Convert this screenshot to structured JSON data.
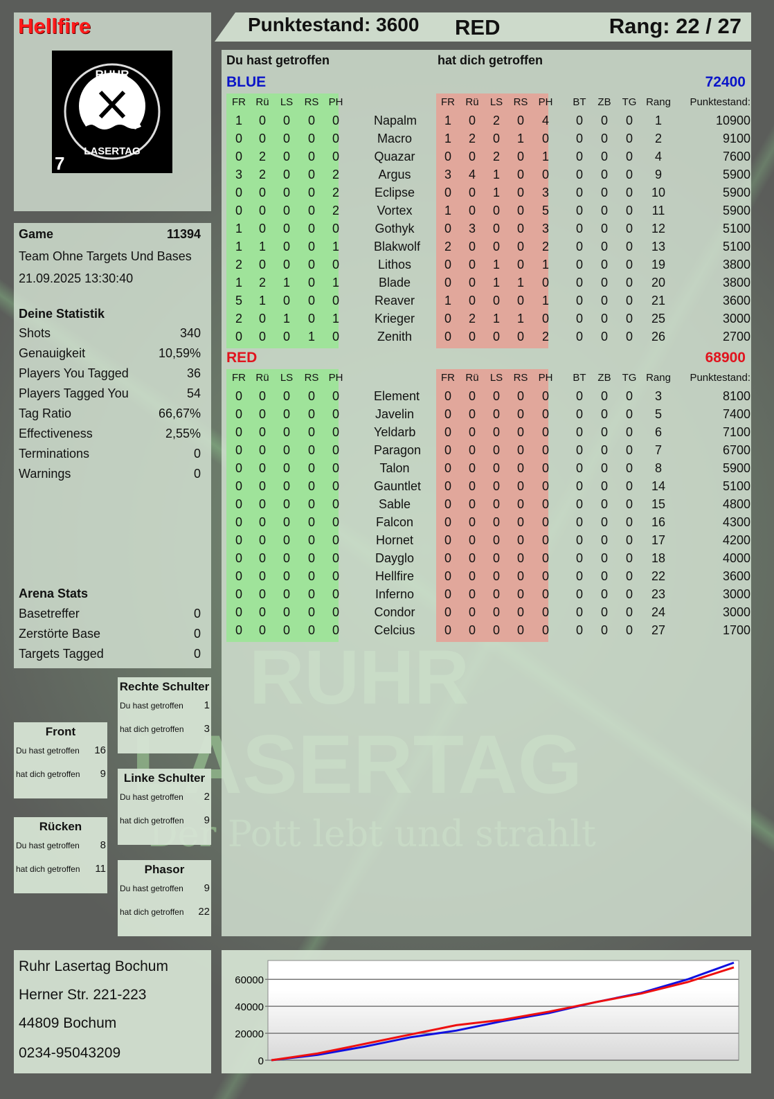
{
  "player": {
    "name": "Hellfire",
    "name_color": "#ff1a1a"
  },
  "logo": {
    "text_top": "RUHR",
    "text_bottom": "LASERTAG",
    "badge": "7"
  },
  "header": {
    "score": "Punktestand: 3600",
    "team": "RED",
    "rank": "Rang: 22 / 27"
  },
  "watermark": {
    "line1": "RUHR",
    "line2": "LASERTAG",
    "line3": "Der Pott lebt und strahlt"
  },
  "game": {
    "label": "Game",
    "id": "11394",
    "mode": "Team Ohne Targets Und Bases",
    "datetime": "21.09.2025 13:30:40"
  },
  "stats": {
    "title": "Deine Statistik",
    "items": [
      {
        "label": "Shots",
        "value": "340"
      },
      {
        "label": "Genauigkeit",
        "value": "10,59%"
      },
      {
        "label": "Players You Tagged",
        "value": "36"
      },
      {
        "label": "Players Tagged You",
        "value": "54"
      },
      {
        "label": "Tag Ratio",
        "value": "66,67%"
      },
      {
        "label": "Effectiveness",
        "value": "2,55%"
      },
      {
        "label": "Terminations",
        "value": "0"
      },
      {
        "label": "Warnings",
        "value": "0"
      }
    ]
  },
  "arena": {
    "title": "Arena Stats",
    "items": [
      {
        "label": "Basetreffer",
        "value": "0"
      },
      {
        "label": "Zerstörte Base",
        "value": "0"
      },
      {
        "label": "Targets Tagged",
        "value": "0"
      }
    ]
  },
  "zones": [
    {
      "id": "rechte-schulter",
      "title": "Rechte Schulter",
      "hit_label": "Du hast getroffen",
      "hit": "1",
      "got_label": "hat dich getroffen",
      "got": "3"
    },
    {
      "id": "front",
      "title": "Front",
      "hit_label": "Du hast getroffen",
      "hit": "16",
      "got_label": "hat dich getroffen",
      "got": "9"
    },
    {
      "id": "linke-schulter",
      "title": "Linke Schulter",
      "hit_label": "Du hast getroffen",
      "hit": "2",
      "got_label": "hat dich getroffen",
      "got": "9"
    },
    {
      "id": "ruecken",
      "title": "Rücken",
      "hit_label": "Du hast getroffen",
      "hit": "8",
      "got_label": "hat dich getroffen",
      "got": "11"
    },
    {
      "id": "phasor",
      "title": "Phasor",
      "hit_label": "Du hast getroffen",
      "hit": "9",
      "got_label": "hat dich getroffen",
      "got": "22"
    }
  ],
  "address": {
    "lines": [
      "Ruhr Lasertag Bochum",
      "Herner Str. 221-223",
      "44809 Bochum",
      "0234-95043209"
    ]
  },
  "table": {
    "you_hit": "Du hast getroffen",
    "hit_you": "hat dich getroffen",
    "columns": [
      "FR",
      "Rü",
      "LS",
      "RS",
      "PH"
    ],
    "extra_columns": [
      "BT",
      "ZB",
      "TG",
      "Rang",
      "Punktestand:"
    ],
    "teams": [
      {
        "name": "BLUE",
        "score": "72400",
        "color": "#0a14c8",
        "players": [
          [
            "1",
            "0",
            "0",
            "0",
            "0",
            "Napalm",
            "1",
            "0",
            "2",
            "0",
            "4",
            "0",
            "0",
            "0",
            "1",
            "10900"
          ],
          [
            "0",
            "0",
            "0",
            "0",
            "0",
            "Macro",
            "1",
            "2",
            "0",
            "1",
            "0",
            "0",
            "0",
            "0",
            "2",
            "9100"
          ],
          [
            "0",
            "2",
            "0",
            "0",
            "0",
            "Quazar",
            "0",
            "0",
            "2",
            "0",
            "1",
            "0",
            "0",
            "0",
            "4",
            "7600"
          ],
          [
            "3",
            "2",
            "0",
            "0",
            "2",
            "Argus",
            "3",
            "4",
            "1",
            "0",
            "0",
            "0",
            "0",
            "0",
            "9",
            "5900"
          ],
          [
            "0",
            "0",
            "0",
            "0",
            "2",
            "Eclipse",
            "0",
            "0",
            "1",
            "0",
            "3",
            "0",
            "0",
            "0",
            "10",
            "5900"
          ],
          [
            "0",
            "0",
            "0",
            "0",
            "2",
            "Vortex",
            "1",
            "0",
            "0",
            "0",
            "5",
            "0",
            "0",
            "0",
            "11",
            "5900"
          ],
          [
            "1",
            "0",
            "0",
            "0",
            "0",
            "Gothyk",
            "0",
            "3",
            "0",
            "0",
            "3",
            "0",
            "0",
            "0",
            "12",
            "5100"
          ],
          [
            "1",
            "1",
            "0",
            "0",
            "1",
            "Blakwolf",
            "2",
            "0",
            "0",
            "0",
            "2",
            "0",
            "0",
            "0",
            "13",
            "5100"
          ],
          [
            "2",
            "0",
            "0",
            "0",
            "0",
            "Lithos",
            "0",
            "0",
            "1",
            "0",
            "1",
            "0",
            "0",
            "0",
            "19",
            "3800"
          ],
          [
            "1",
            "2",
            "1",
            "0",
            "1",
            "Blade",
            "0",
            "0",
            "1",
            "1",
            "0",
            "0",
            "0",
            "0",
            "20",
            "3800"
          ],
          [
            "5",
            "1",
            "0",
            "0",
            "0",
            "Reaver",
            "1",
            "0",
            "0",
            "0",
            "1",
            "0",
            "0",
            "0",
            "21",
            "3600"
          ],
          [
            "2",
            "0",
            "1",
            "0",
            "1",
            "Krieger",
            "0",
            "2",
            "1",
            "1",
            "0",
            "0",
            "0",
            "0",
            "25",
            "3000"
          ],
          [
            "0",
            "0",
            "0",
            "1",
            "0",
            "Zenith",
            "0",
            "0",
            "0",
            "0",
            "2",
            "0",
            "0",
            "0",
            "26",
            "2700"
          ]
        ]
      },
      {
        "name": "RED",
        "score": "68900",
        "color": "#e0141e",
        "players": [
          [
            "0",
            "0",
            "0",
            "0",
            "0",
            "Element",
            "0",
            "0",
            "0",
            "0",
            "0",
            "0",
            "0",
            "0",
            "3",
            "8100"
          ],
          [
            "0",
            "0",
            "0",
            "0",
            "0",
            "Javelin",
            "0",
            "0",
            "0",
            "0",
            "0",
            "0",
            "0",
            "0",
            "5",
            "7400"
          ],
          [
            "0",
            "0",
            "0",
            "0",
            "0",
            "Yeldarb",
            "0",
            "0",
            "0",
            "0",
            "0",
            "0",
            "0",
            "0",
            "6",
            "7100"
          ],
          [
            "0",
            "0",
            "0",
            "0",
            "0",
            "Paragon",
            "0",
            "0",
            "0",
            "0",
            "0",
            "0",
            "0",
            "0",
            "7",
            "6700"
          ],
          [
            "0",
            "0",
            "0",
            "0",
            "0",
            "Talon",
            "0",
            "0",
            "0",
            "0",
            "0",
            "0",
            "0",
            "0",
            "8",
            "5900"
          ],
          [
            "0",
            "0",
            "0",
            "0",
            "0",
            "Gauntlet",
            "0",
            "0",
            "0",
            "0",
            "0",
            "0",
            "0",
            "0",
            "14",
            "5100"
          ],
          [
            "0",
            "0",
            "0",
            "0",
            "0",
            "Sable",
            "0",
            "0",
            "0",
            "0",
            "0",
            "0",
            "0",
            "0",
            "15",
            "4800"
          ],
          [
            "0",
            "0",
            "0",
            "0",
            "0",
            "Falcon",
            "0",
            "0",
            "0",
            "0",
            "0",
            "0",
            "0",
            "0",
            "16",
            "4300"
          ],
          [
            "0",
            "0",
            "0",
            "0",
            "0",
            "Hornet",
            "0",
            "0",
            "0",
            "0",
            "0",
            "0",
            "0",
            "0",
            "17",
            "4200"
          ],
          [
            "0",
            "0",
            "0",
            "0",
            "0",
            "Dayglo",
            "0",
            "0",
            "0",
            "0",
            "0",
            "0",
            "0",
            "0",
            "18",
            "4000"
          ],
          [
            "0",
            "0",
            "0",
            "0",
            "0",
            "Hellfire",
            "0",
            "0",
            "0",
            "0",
            "0",
            "0",
            "0",
            "0",
            "22",
            "3600"
          ],
          [
            "0",
            "0",
            "0",
            "0",
            "0",
            "Inferno",
            "0",
            "0",
            "0",
            "0",
            "0",
            "0",
            "0",
            "0",
            "23",
            "3000"
          ],
          [
            "0",
            "0",
            "0",
            "0",
            "0",
            "Condor",
            "0",
            "0",
            "0",
            "0",
            "0",
            "0",
            "0",
            "0",
            "24",
            "3000"
          ],
          [
            "0",
            "0",
            "0",
            "0",
            "0",
            "Celcius",
            "0",
            "0",
            "0",
            "0",
            "0",
            "0",
            "0",
            "0",
            "27",
            "1700"
          ]
        ]
      }
    ]
  },
  "chart_data": {
    "type": "line",
    "ylim": [
      0,
      74000
    ],
    "yticks": [
      "0",
      "20000",
      "40000",
      "60000"
    ],
    "ytick_values": [
      0,
      20000,
      40000,
      60000
    ],
    "grid": true,
    "x": [
      0,
      1,
      2,
      3,
      4,
      5,
      6,
      7,
      8,
      9,
      10
    ],
    "series": [
      {
        "color": "#1010e0",
        "values": [
          0,
          4000,
          10000,
          17000,
          22000,
          29000,
          35000,
          43000,
          50000,
          60000,
          72400
        ]
      },
      {
        "color": "#ee1010",
        "values": [
          0,
          5000,
          12000,
          19000,
          26000,
          30000,
          36000,
          43000,
          49500,
          58000,
          68900
        ]
      }
    ]
  }
}
